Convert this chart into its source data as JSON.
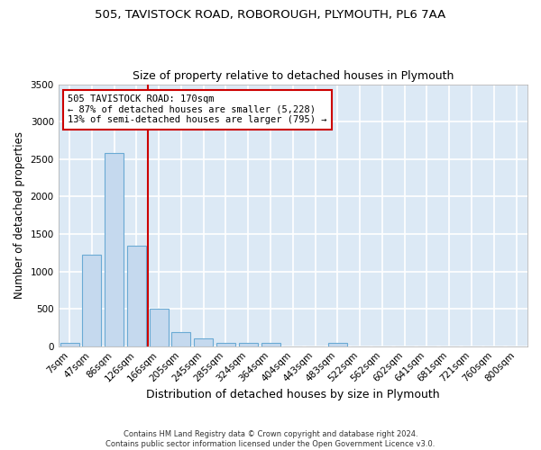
{
  "title1": "505, TAVISTOCK ROAD, ROBOROUGH, PLYMOUTH, PL6 7AA",
  "title2": "Size of property relative to detached houses in Plymouth",
  "xlabel": "Distribution of detached houses by size in Plymouth",
  "ylabel": "Number of detached properties",
  "categories": [
    "7sqm",
    "47sqm",
    "86sqm",
    "126sqm",
    "166sqm",
    "205sqm",
    "245sqm",
    "285sqm",
    "324sqm",
    "364sqm",
    "404sqm",
    "443sqm",
    "483sqm",
    "522sqm",
    "562sqm",
    "602sqm",
    "641sqm",
    "681sqm",
    "721sqm",
    "760sqm",
    "800sqm"
  ],
  "values": [
    50,
    1220,
    2580,
    1340,
    500,
    190,
    100,
    50,
    40,
    50,
    0,
    0,
    50,
    0,
    0,
    0,
    0,
    0,
    0,
    0,
    0
  ],
  "bar_color": "#c5d9ee",
  "bar_edge_color": "#6aaad4",
  "background_color": "#dce9f5",
  "grid_color": "#ffffff",
  "annotation_text": "505 TAVISTOCK ROAD: 170sqm\n← 87% of detached houses are smaller (5,228)\n13% of semi-detached houses are larger (795) →",
  "annotation_box_color": "#ffffff",
  "annotation_line_color": "#cc0000",
  "ylim": [
    0,
    3500
  ],
  "yticks": [
    0,
    500,
    1000,
    1500,
    2000,
    2500,
    3000,
    3500
  ],
  "red_line_x": 3.5,
  "footnote": "Contains HM Land Registry data © Crown copyright and database right 2024.\nContains public sector information licensed under the Open Government Licence v3.0."
}
